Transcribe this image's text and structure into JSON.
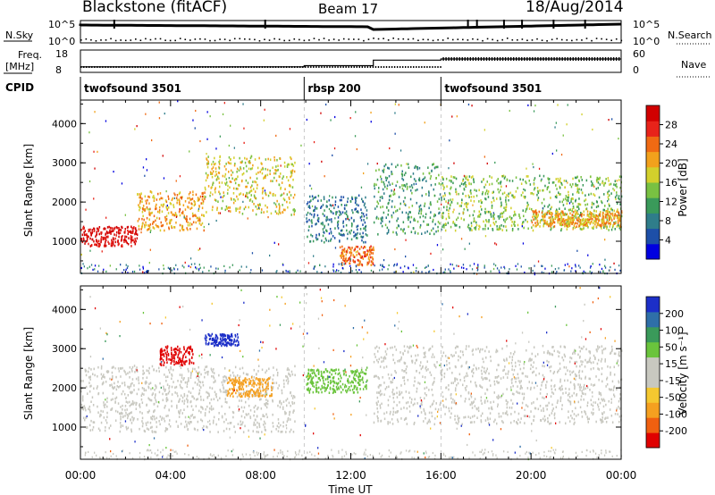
{
  "header": {
    "station": "Blackstone (fitACF)",
    "beam": "Beam 17",
    "date": "18/Aug/2014"
  },
  "status_panel": {
    "nsky_label": "N.Sky",
    "nsky_ticks": [
      "10^5",
      "10^0"
    ],
    "nsearch_ticks": [
      "10^5",
      "10^0"
    ],
    "nsearch_label": "N.Search",
    "freq_label_1": "Freq.",
    "freq_label_2": "[MHz]",
    "freq_ticks": [
      "18",
      "8"
    ],
    "nave_ticks": [
      "60",
      "0"
    ],
    "nave_label": "Nave",
    "cpid_label": "CPID",
    "cpid_segments": [
      {
        "name": "twofsound 3501",
        "start": 0.0,
        "end": 9.93
      },
      {
        "name": "rbsp 200",
        "start": 9.93,
        "end": 16.0
      },
      {
        "name": "twofsound 3501",
        "start": 16.0,
        "end": 24.0
      }
    ],
    "freq_steps": [
      {
        "start": 0.0,
        "end": 9.93,
        "mhz": 10.5
      },
      {
        "start": 9.93,
        "end": 13.0,
        "mhz": 11.0
      },
      {
        "start": 13.0,
        "end": 16.0,
        "mhz": 13.5
      },
      {
        "start": 16.0,
        "end": 24.0,
        "mhz": 14.0
      }
    ]
  },
  "chart_data": [
    {
      "type": "heatmap",
      "title": "",
      "ylabel": "Slant Range [km]",
      "xlabel": "",
      "ylim": [
        180,
        4600
      ],
      "xlim": [
        0,
        24
      ],
      "yticks": [
        "1000",
        "2000",
        "3000",
        "4000"
      ],
      "colorbar": {
        "label": "Power [dB]",
        "ticks": [
          "28",
          "24",
          "20",
          "16",
          "12",
          "8",
          "4"
        ],
        "colors": [
          "#0000e0",
          "#1d4fa8",
          "#2f7d8a",
          "#3a9a5a",
          "#79c142",
          "#d3d02c",
          "#f2a11c",
          "#f06a13",
          "#e8231a",
          "#d10000"
        ]
      },
      "echo_bands": [
        {
          "t0": 0.0,
          "t1": 2.5,
          "r0": 900,
          "r1": 1400,
          "power": 27
        },
        {
          "t0": 2.5,
          "t1": 5.5,
          "r0": 1300,
          "r1": 2300,
          "power": 20
        },
        {
          "t0": 5.5,
          "t1": 9.5,
          "r0": 1700,
          "r1": 3200,
          "power": 15
        },
        {
          "t0": 10.0,
          "t1": 12.7,
          "r0": 1000,
          "r1": 2200,
          "power": 8
        },
        {
          "t0": 11.5,
          "t1": 13.0,
          "r0": 400,
          "r1": 900,
          "power": 22
        },
        {
          "t0": 13.0,
          "t1": 16.0,
          "r0": 1200,
          "r1": 3000,
          "power": 10
        },
        {
          "t0": 16.0,
          "t1": 24.0,
          "r0": 1300,
          "r1": 2700,
          "power": 12
        },
        {
          "t0": 20.0,
          "t1": 24.0,
          "r0": 1400,
          "r1": 1800,
          "power": 18
        }
      ]
    },
    {
      "type": "heatmap",
      "title": "",
      "ylabel": "Slant Range [km]",
      "xlabel": "Time UT",
      "ylim": [
        180,
        4600
      ],
      "xlim": [
        0,
        24
      ],
      "yticks": [
        "1000",
        "2000",
        "3000",
        "4000"
      ],
      "xticks": [
        "00:00",
        "04:00",
        "08:00",
        "12:00",
        "16:00",
        "20:00",
        "00:00"
      ],
      "colorbar": {
        "label": "Velocity [m s⁻¹]",
        "ticks": [
          "200",
          "100",
          "50",
          "15",
          "-15",
          "-50",
          "-100",
          "-200"
        ],
        "colors": [
          "#e00000",
          "#f06010",
          "#f5a020",
          "#f5c830",
          "#c8c8c0",
          "#c8c8c0",
          "#6ac43c",
          "#3a9a5a",
          "#2f6fa8",
          "#1c2fc8"
        ]
      },
      "echo_bands": [
        {
          "t0": 0.0,
          "t1": 9.5,
          "r0": 900,
          "r1": 2600,
          "velocity": 0
        },
        {
          "t0": 3.5,
          "t1": 5.0,
          "r0": 2600,
          "r1": 3100,
          "velocity": -180
        },
        {
          "t0": 6.5,
          "t1": 8.5,
          "r0": 1800,
          "r1": 2300,
          "velocity": -60
        },
        {
          "t0": 5.5,
          "t1": 7.0,
          "r0": 3100,
          "r1": 3400,
          "velocity": 190
        },
        {
          "t0": 13.0,
          "t1": 24.0,
          "r0": 1100,
          "r1": 3100,
          "velocity": 0
        },
        {
          "t0": 10.0,
          "t1": 12.7,
          "r0": 1900,
          "r1": 2500,
          "velocity": 40
        }
      ]
    }
  ]
}
